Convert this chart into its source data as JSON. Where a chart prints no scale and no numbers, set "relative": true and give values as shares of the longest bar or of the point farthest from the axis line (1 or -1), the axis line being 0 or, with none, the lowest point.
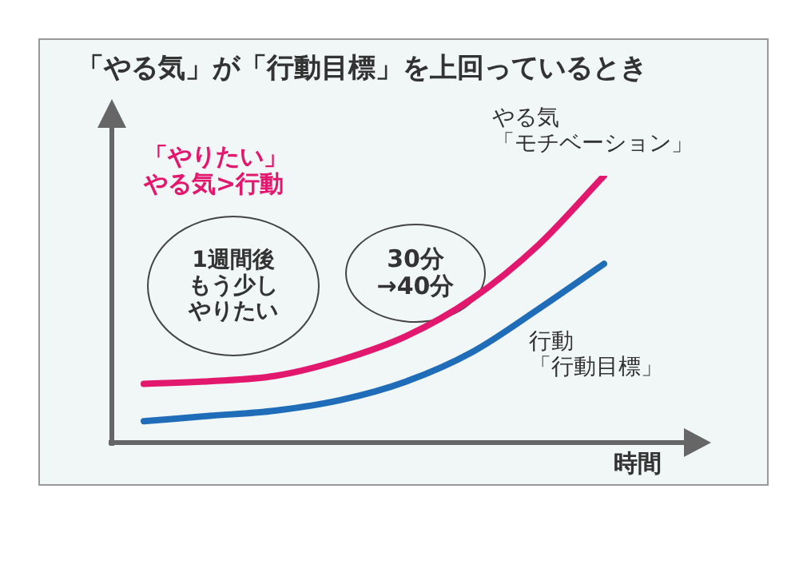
{
  "chart_data": {
    "type": "line",
    "title": "「やる気」が「行動目標」を上回っているとき",
    "xlabel": "時間",
    "relative": true,
    "marker": "none",
    "line_style": "solid",
    "categories": [
      null,
      null,
      null,
      null,
      null,
      null,
      null,
      null
    ],
    "series": [
      {
        "name": "やる気「モチベーション」",
        "color": "#e2186e",
        "values": [
          0.22,
          0.23,
          0.25,
          0.31,
          0.4,
          0.54,
          0.74,
          1
        ]
      },
      {
        "name": "行動「行動目標」",
        "color": "#1f6db8",
        "values": [
          0.08,
          0.1,
          0.12,
          0.16,
          0.23,
          0.34,
          0.5,
          0.67
        ]
      }
    ],
    "annotations": [
      "「やりたい」やる気>行動",
      "1週間後もう少しやりたい",
      "30分→40分"
    ]
  }
}
